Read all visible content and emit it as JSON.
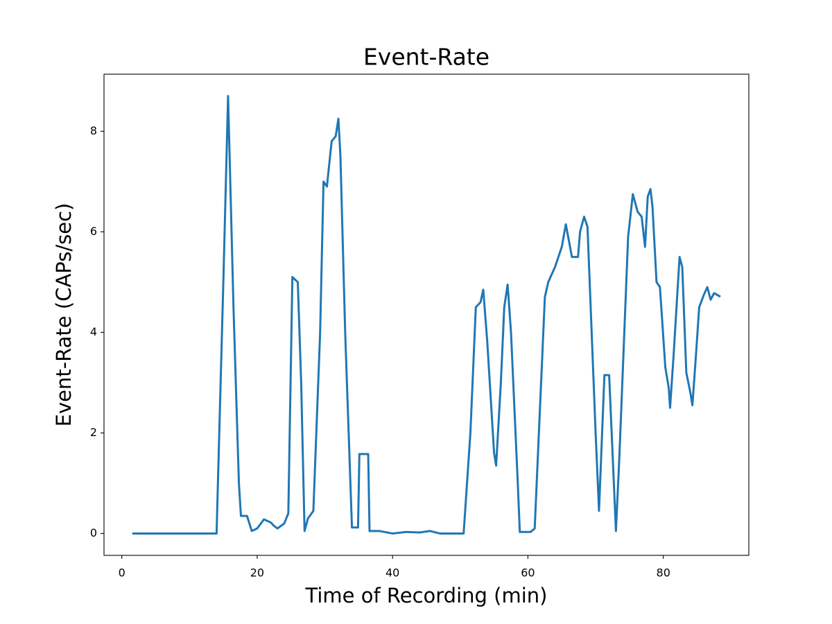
{
  "chart_data": {
    "type": "line",
    "title": "Event-Rate",
    "xlabel": "Time of Recording (min)",
    "ylabel": "Event-Rate (CAPs/sec)",
    "color": "#1f77b4",
    "x": [
      1.7,
      14.0,
      15.0,
      15.7,
      16.5,
      17.3,
      17.6,
      18.5,
      19.2,
      20,
      21,
      22,
      22.5,
      23,
      24,
      24.6,
      25.2,
      26.0,
      26.5,
      27.0,
      27.5,
      28.3,
      29.3,
      29.8,
      30.3,
      31.0,
      31.6,
      32.0,
      32.3,
      33.0,
      34.0,
      34.9,
      35.1,
      36.4,
      36.6,
      38,
      40,
      42,
      44,
      45.5,
      47,
      50.5,
      51.5,
      52.3,
      53,
      53.4,
      54,
      55,
      55.3,
      56,
      56.5,
      57,
      57.5,
      58.5,
      58.8,
      60.4,
      61,
      62.5,
      63,
      64,
      65,
      65.6,
      66.5,
      67.4,
      67.7,
      68.3,
      68.8,
      70.0,
      70.5,
      71.3,
      72.0,
      73.0,
      73.5,
      74.8,
      75.5,
      76.2,
      76.8,
      77.3,
      77.7,
      78.1,
      78.4,
      79.0,
      79.5,
      80.3,
      80.8,
      81.0,
      81.5,
      82.4,
      82.8,
      83.4,
      84.0,
      84.3,
      84.8,
      85.3,
      86,
      86.5,
      87,
      87.5,
      88.3
    ],
    "values": [
      0,
      0,
      5,
      8.7,
      4.5,
      1,
      0.35,
      0.35,
      0.05,
      0.1,
      0.28,
      0.22,
      0.15,
      0.1,
      0.2,
      0.4,
      5.1,
      5.0,
      3,
      0.05,
      0.3,
      0.45,
      4,
      7.0,
      6.9,
      7.8,
      7.9,
      8.25,
      7.5,
      4,
      0.12,
      0.12,
      1.58,
      1.58,
      0.05,
      0.05,
      0.0,
      0.03,
      0.02,
      0.05,
      0.0,
      0.0,
      2,
      4.5,
      4.6,
      4.85,
      3.8,
      1.6,
      1.35,
      3,
      4.5,
      4.95,
      4,
      1,
      0.03,
      0.03,
      0.1,
      4.7,
      5,
      5.3,
      5.7,
      6.15,
      5.5,
      5.5,
      6.0,
      6.3,
      6.1,
      2,
      0.45,
      3.15,
      3.15,
      0.05,
      1.5,
      5.9,
      6.75,
      6.4,
      6.3,
      5.7,
      6.7,
      6.85,
      6.5,
      5.0,
      4.9,
      3.3,
      2.9,
      2.5,
      3.5,
      5.5,
      5.3,
      3.2,
      2.8,
      2.55,
      3.5,
      4.5,
      4.75,
      4.9,
      4.65,
      4.78,
      4.72
    ],
    "xlim": [
      -2.63,
      92.63
    ],
    "xticks": [
      0,
      20,
      40,
      60,
      80
    ],
    "ylim": [
      -0.435,
      9.135
    ],
    "yticks": [
      0,
      2,
      4,
      6,
      8
    ]
  }
}
